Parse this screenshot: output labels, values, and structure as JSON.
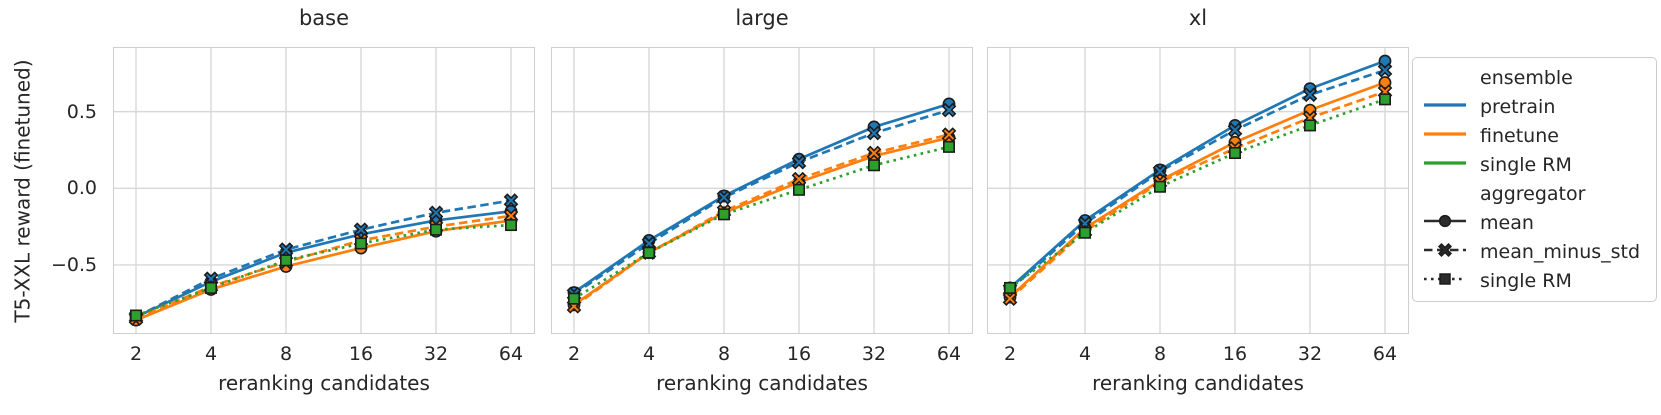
{
  "figure": {
    "ylabel": "T5-XXL reward (finetuned)",
    "xlabel": "reranking candidates",
    "background": "#ffffff",
    "grid_color": "#d8d8d8",
    "spine_color": "#cfcfcf",
    "text_color": "#262626",
    "yticks": [
      {
        "label": "0.5",
        "value": 0.5
      },
      {
        "label": "0.0",
        "value": 0.0
      },
      {
        "label": "−0.5",
        "value": -0.5
      }
    ],
    "xtick_labels": [
      "2",
      "4",
      "8",
      "16",
      "32",
      "64"
    ]
  },
  "legend": {
    "items": [
      {
        "type": "header",
        "label": "ensemble"
      },
      {
        "type": "ensemble",
        "label": "pretrain",
        "color": "#1f77b4"
      },
      {
        "type": "ensemble",
        "label": "finetune",
        "color": "#ff7f0e"
      },
      {
        "type": "ensemble",
        "label": "single RM",
        "color": "#2ca02c"
      },
      {
        "type": "header",
        "label": "aggregator"
      },
      {
        "type": "aggregator",
        "label": "mean",
        "linestyle": "solid",
        "marker": "circle"
      },
      {
        "type": "aggregator",
        "label": "mean_minus_std",
        "linestyle": "dashed",
        "marker": "x"
      },
      {
        "type": "aggregator",
        "label": "single RM",
        "linestyle": "dotted",
        "marker": "square"
      }
    ]
  },
  "chart_data": [
    {
      "type": "line",
      "title": "base",
      "xscale": "log2",
      "x": [
        2,
        4,
        8,
        16,
        32,
        64
      ],
      "ylim": [
        -0.944,
        0.915
      ],
      "grid": true,
      "series": [
        {
          "ensemble": "pretrain",
          "aggregator": "mean",
          "color": "#1f77b4",
          "linestyle": "solid",
          "marker": "circle",
          "values": [
            -0.84,
            -0.61,
            -0.42,
            -0.3,
            -0.21,
            -0.15
          ]
        },
        {
          "ensemble": "pretrain",
          "aggregator": "mean_minus_std",
          "color": "#1f77b4",
          "linestyle": "dashed",
          "marker": "x",
          "values": [
            -0.84,
            -0.59,
            -0.4,
            -0.27,
            -0.16,
            -0.08
          ]
        },
        {
          "ensemble": "finetune",
          "aggregator": "mean",
          "color": "#ff7f0e",
          "linestyle": "solid",
          "marker": "circle",
          "values": [
            -0.86,
            -0.66,
            -0.51,
            -0.39,
            -0.28,
            -0.21
          ]
        },
        {
          "ensemble": "finetune",
          "aggregator": "mean_minus_std",
          "color": "#ff7f0e",
          "linestyle": "dashed",
          "marker": "x",
          "values": [
            -0.85,
            -0.64,
            -0.48,
            -0.34,
            -0.25,
            -0.18
          ]
        },
        {
          "ensemble": "single RM",
          "aggregator": "single RM",
          "color": "#2ca02c",
          "linestyle": "dotted",
          "marker": "square",
          "values": [
            -0.83,
            -0.65,
            -0.47,
            -0.36,
            -0.27,
            -0.24
          ]
        }
      ]
    },
    {
      "type": "line",
      "title": "large",
      "xscale": "log2",
      "x": [
        2,
        4,
        8,
        16,
        32,
        64
      ],
      "ylim": [
        -0.944,
        0.915
      ],
      "grid": true,
      "series": [
        {
          "ensemble": "pretrain",
          "aggregator": "mean",
          "color": "#1f77b4",
          "linestyle": "solid",
          "marker": "circle",
          "values": [
            -0.68,
            -0.34,
            -0.05,
            0.19,
            0.4,
            0.55
          ]
        },
        {
          "ensemble": "pretrain",
          "aggregator": "mean_minus_std",
          "color": "#1f77b4",
          "linestyle": "dashed",
          "marker": "x",
          "values": [
            -0.69,
            -0.36,
            -0.06,
            0.17,
            0.36,
            0.51
          ]
        },
        {
          "ensemble": "finetune",
          "aggregator": "mean",
          "color": "#ff7f0e",
          "linestyle": "solid",
          "marker": "circle",
          "values": [
            -0.76,
            -0.42,
            -0.16,
            0.04,
            0.21,
            0.33
          ]
        },
        {
          "ensemble": "finetune",
          "aggregator": "mean_minus_std",
          "color": "#ff7f0e",
          "linestyle": "dashed",
          "marker": "x",
          "values": [
            -0.77,
            -0.42,
            -0.15,
            0.06,
            0.23,
            0.35
          ]
        },
        {
          "ensemble": "single RM",
          "aggregator": "single RM",
          "color": "#2ca02c",
          "linestyle": "dotted",
          "marker": "square",
          "values": [
            -0.72,
            -0.42,
            -0.17,
            -0.01,
            0.15,
            0.27
          ]
        }
      ]
    },
    {
      "type": "line",
      "title": "xl",
      "xscale": "log2",
      "x": [
        2,
        4,
        8,
        16,
        32,
        64
      ],
      "ylim": [
        -0.944,
        0.915
      ],
      "grid": true,
      "series": [
        {
          "ensemble": "pretrain",
          "aggregator": "mean",
          "color": "#1f77b4",
          "linestyle": "solid",
          "marker": "circle",
          "values": [
            -0.65,
            -0.21,
            0.12,
            0.41,
            0.65,
            0.83
          ]
        },
        {
          "ensemble": "pretrain",
          "aggregator": "mean_minus_std",
          "color": "#1f77b4",
          "linestyle": "dashed",
          "marker": "x",
          "values": [
            -0.66,
            -0.23,
            0.11,
            0.38,
            0.61,
            0.77
          ]
        },
        {
          "ensemble": "finetune",
          "aggregator": "mean",
          "color": "#ff7f0e",
          "linestyle": "solid",
          "marker": "circle",
          "values": [
            -0.71,
            -0.26,
            0.05,
            0.3,
            0.51,
            0.69
          ]
        },
        {
          "ensemble": "finetune",
          "aggregator": "mean_minus_std",
          "color": "#ff7f0e",
          "linestyle": "dashed",
          "marker": "x",
          "values": [
            -0.72,
            -0.28,
            0.04,
            0.26,
            0.46,
            0.63
          ]
        },
        {
          "ensemble": "single RM",
          "aggregator": "single RM",
          "color": "#2ca02c",
          "linestyle": "dotted",
          "marker": "square",
          "values": [
            -0.65,
            -0.29,
            0.01,
            0.23,
            0.41,
            0.58
          ]
        }
      ]
    }
  ]
}
